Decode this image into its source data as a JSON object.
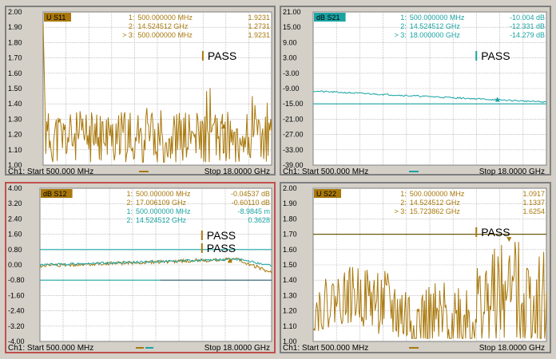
{
  "colors": {
    "s11": "#a9780b",
    "s21": "#1aa3a3",
    "s12_a": "#a9780b",
    "s12_b": "#1aa3a3",
    "s22": "#a9780b",
    "grid": "#a0a0a0",
    "active_border": "#c0504d"
  },
  "panels": [
    {
      "id": "s11",
      "trace_label": "U S11",
      "label_color": "#a9780b",
      "label_text_color": "#000000",
      "y_ticks": [
        "2.00",
        "1.90",
        "1.80",
        "1.70",
        "1.60",
        "1.50",
        "1.40",
        "1.30",
        "1.20",
        "1.10",
        "1.00"
      ],
      "y_min": 1.0,
      "y_max": 2.0,
      "markers": [
        {
          "id": "1:",
          "freq": "500.000000 MHz",
          "value": "1.9231"
        },
        {
          "id": "2:",
          "freq": "14.524512 GHz",
          "value": "1.2731"
        },
        {
          "id": "> 3:",
          "freq": "500.000000 MHz",
          "value": "1.9231"
        }
      ],
      "pass_labels": [
        "PASS"
      ],
      "footer_left": "Ch1: Start  500.000 MHz",
      "footer_right": "Stop  18.0000 GHz"
    },
    {
      "id": "s21",
      "trace_label": "dB S21",
      "label_color": "#1aa3a3",
      "label_text_color": "#000000",
      "y_ticks": [
        "21.00",
        "15.00",
        "9.00",
        "3.00",
        "-3.00",
        "-9.00",
        "-15.00",
        "-21.00",
        "-27.00",
        "-33.00",
        "-39.00"
      ],
      "y_min": -39.0,
      "y_max": 21.0,
      "markers": [
        {
          "id": "1:",
          "freq": "500.000000 MHz",
          "value": "-10.004 dB"
        },
        {
          "id": "2:",
          "freq": "14.524512 GHz",
          "value": "-12.331 dB"
        },
        {
          "id": "> 3:",
          "freq": "18.000000 GHz",
          "value": "-14.279 dB"
        }
      ],
      "pass_labels": [
        "PASS"
      ],
      "footer_left": "Ch1: Start  500.000 MHz",
      "footer_right": "Stop  18.0000 GHz"
    },
    {
      "id": "s12",
      "trace_label": "dB S12",
      "label_color": "#a9780b",
      "label_text_color": "#000000",
      "y_ticks": [
        "4.00",
        "3.20",
        "2.40",
        "1.60",
        "0.80",
        "0.00",
        "-0.80",
        "-1.60",
        "-2.40",
        "-3.20",
        "-4.00"
      ],
      "y_min": -4.0,
      "y_max": 4.0,
      "markers": [
        {
          "id": "1:",
          "freq": "500.000000 MHz",
          "value": "-0.04537 dB",
          "color": "#a9780b"
        },
        {
          "id": "2:",
          "freq": "17.006109 GHz",
          "value": "-0.60110 dB",
          "color": "#a9780b"
        },
        {
          "id": "1:",
          "freq": "500.000000 MHz",
          "value": "-8.9845 m",
          "color": "#1aa3a3"
        },
        {
          "id": "2:",
          "freq": "14.524512 GHz",
          "value": "0.3628",
          "color": "#1aa3a3"
        }
      ],
      "pass_labels": [
        "PASS",
        "PASS"
      ],
      "footer_left": "Ch1: Start  500.000 MHz",
      "footer_right": "Stop  18.0000 GHz"
    },
    {
      "id": "s22",
      "trace_label": "U S22",
      "label_color": "#a9780b",
      "label_text_color": "#000000",
      "y_ticks": [
        "2.00",
        "1.90",
        "1.80",
        "1.70",
        "1.60",
        "1.50",
        "1.40",
        "1.30",
        "1.20",
        "1.10",
        "1.00"
      ],
      "y_min": 1.0,
      "y_max": 2.0,
      "markers": [
        {
          "id": "1:",
          "freq": "500.000000 MHz",
          "value": "1.0917"
        },
        {
          "id": "2:",
          "freq": "14.524512 GHz",
          "value": "1.1337"
        },
        {
          "id": "> 3:",
          "freq": "15.723862 GHz",
          "value": "1.6254"
        }
      ],
      "pass_labels": [
        "PASS"
      ],
      "footer_left": "Ch1: Start  500.000 MHz",
      "footer_right": "Stop  18.0000 GHz"
    }
  ]
}
